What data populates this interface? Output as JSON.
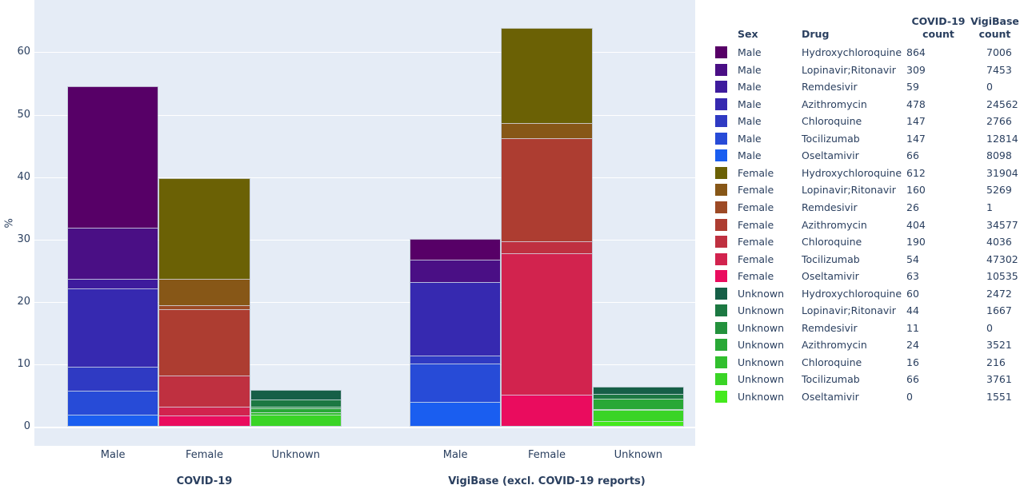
{
  "colors": {
    "plot_background": "#e5ecf6",
    "gridline": "#ffffff",
    "text": "#2a3f5f",
    "bar_outline": "rgba(190,198,212,0.7)"
  },
  "y_axis": {
    "title": "%",
    "ticks": [
      0,
      10,
      20,
      30,
      40,
      50,
      60
    ]
  },
  "chart_data": {
    "type": "bar",
    "stacked": true,
    "normalization": "each panel's stacks shown as percent of that panel's total count",
    "ylabel": "%",
    "ylim": [
      0,
      69
    ],
    "grid": true,
    "legend_position": "right-table",
    "panels": [
      "COVID-19",
      "VigiBase (excl. COVID-19 reports)"
    ],
    "categories": [
      "Male",
      "Female",
      "Unknown"
    ],
    "stack_order_bottom_to_top": [
      "Oseltamivir",
      "Tocilizumab",
      "Chloroquine",
      "Azithromycin",
      "Remdesivir",
      "Lopinavir;Ritonavir",
      "Hydroxychloroquine"
    ],
    "series": [
      {
        "sex": "Male",
        "drug": "Hydroxychloroquine",
        "covid19_count": 864,
        "vigibase_count": 7006,
        "color": "#570067"
      },
      {
        "sex": "Male",
        "drug": "Lopinavir;Ritonavir",
        "covid19_count": 309,
        "vigibase_count": 7453,
        "color": "#4a0f85"
      },
      {
        "sex": "Male",
        "drug": "Remdesivir",
        "covid19_count": 59,
        "vigibase_count": 0,
        "color": "#3e1b9d"
      },
      {
        "sex": "Male",
        "drug": "Azithromycin",
        "covid19_count": 478,
        "vigibase_count": 24562,
        "color": "#3629b0"
      },
      {
        "sex": "Male",
        "drug": "Chloroquine",
        "covid19_count": 147,
        "vigibase_count": 2766,
        "color": "#2f3ac3"
      },
      {
        "sex": "Male",
        "drug": "Tocilizumab",
        "covid19_count": 147,
        "vigibase_count": 12814,
        "color": "#274bd7"
      },
      {
        "sex": "Male",
        "drug": "Oseltamivir",
        "covid19_count": 66,
        "vigibase_count": 8098,
        "color": "#1a5ef0"
      },
      {
        "sex": "Female",
        "drug": "Hydroxychloroquine",
        "covid19_count": 612,
        "vigibase_count": 31904,
        "color": "#6b6105"
      },
      {
        "sex": "Female",
        "drug": "Lopinavir;Ritonavir",
        "covid19_count": 160,
        "vigibase_count": 5269,
        "color": "#875717"
      },
      {
        "sex": "Female",
        "drug": "Remdesivir",
        "covid19_count": 26,
        "vigibase_count": 1,
        "color": "#9d4a25"
      },
      {
        "sex": "Female",
        "drug": "Azithromycin",
        "covid19_count": 404,
        "vigibase_count": 34577,
        "color": "#ad3d31"
      },
      {
        "sex": "Female",
        "drug": "Chloroquine",
        "covid19_count": 190,
        "vigibase_count": 4036,
        "color": "#bf3040"
      },
      {
        "sex": "Female",
        "drug": "Tocilizumab",
        "covid19_count": 54,
        "vigibase_count": 47302,
        "color": "#d2234e"
      },
      {
        "sex": "Female",
        "drug": "Oseltamivir",
        "covid19_count": 63,
        "vigibase_count": 10535,
        "color": "#ea0c5e"
      },
      {
        "sex": "Unknown",
        "drug": "Hydroxychloroquine",
        "covid19_count": 60,
        "vigibase_count": 2472,
        "color": "#165f47"
      },
      {
        "sex": "Unknown",
        "drug": "Lopinavir;Ritonavir",
        "covid19_count": 44,
        "vigibase_count": 1667,
        "color": "#1c7842"
      },
      {
        "sex": "Unknown",
        "drug": "Remdesivir",
        "covid19_count": 11,
        "vigibase_count": 0,
        "color": "#23913c"
      },
      {
        "sex": "Unknown",
        "drug": "Azithromycin",
        "covid19_count": 24,
        "vigibase_count": 3521,
        "color": "#29a836"
      },
      {
        "sex": "Unknown",
        "drug": "Chloroquine",
        "covid19_count": 16,
        "vigibase_count": 216,
        "color": "#31bf2e"
      },
      {
        "sex": "Unknown",
        "drug": "Tocilizumab",
        "covid19_count": 66,
        "vigibase_count": 3761,
        "color": "#3ad426"
      },
      {
        "sex": "Unknown",
        "drug": "Oseltamivir",
        "covid19_count": 0,
        "vigibase_count": 1551,
        "color": "#44e91d"
      }
    ]
  },
  "legend_table": {
    "col_headers": {
      "sex": "Sex",
      "drug": "Drug",
      "covid_line1": "COVID-19",
      "vigibase_line1": "VigiBase",
      "count_line2": "count"
    }
  }
}
